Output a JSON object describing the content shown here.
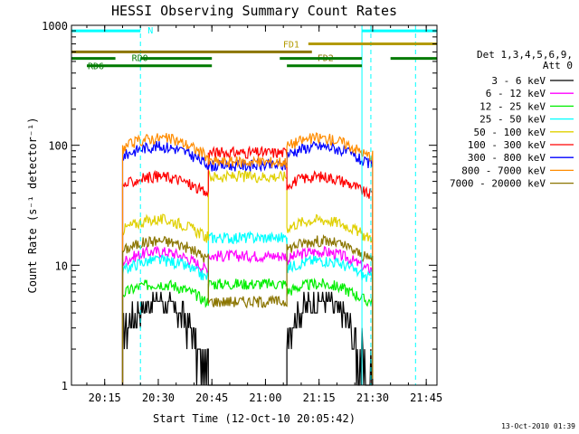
{
  "chart_data": {
    "type": "line",
    "title": "HESSI Observing Summary Count Rates",
    "xlabel": "Start Time (12-Oct-10 20:05:42)",
    "ylabel": "Count Rate (s⁻¹ detector⁻¹)",
    "y_scale": "log",
    "ylim": [
      1,
      1000
    ],
    "xlim": [
      "20:05:42",
      "21:48:00"
    ],
    "x_tick_labels": [
      "20:15",
      "20:30",
      "20:45",
      "21:00",
      "21:15",
      "21:30",
      "21:45"
    ],
    "y_tick_labels": [
      "1",
      "10",
      "100",
      "1000"
    ],
    "legend_header": [
      "Det 1,3,4,5,6,9,",
      "Att 0"
    ],
    "legend_position": "right",
    "series": [
      {
        "name": "3 - 6 keV",
        "color": "#000000",
        "levels": {
          "day": 3,
          "night": 0
        }
      },
      {
        "name": "6 - 12 keV",
        "color": "#ff00ff",
        "levels": {
          "day": 13,
          "night": 12
        }
      },
      {
        "name": "12 - 25 keV",
        "color": "#00ee00",
        "levels": {
          "day": 7,
          "night": 7
        }
      },
      {
        "name": "25 - 50 keV",
        "color": "#00ffff",
        "levels": {
          "day": 11,
          "night": 17
        }
      },
      {
        "name": "50 - 100 keV",
        "color": "#e0d000",
        "levels": {
          "day": 24,
          "night": 55
        }
      },
      {
        "name": "100 - 300 keV",
        "color": "#ff0000",
        "levels": {
          "day": 55,
          "night": 87
        }
      },
      {
        "name": "300 - 800 keV",
        "color": "#0000ff",
        "levels": {
          "day": 98,
          "night": 68
        }
      },
      {
        "name": "800 - 7000 keV",
        "color": "#ff8c00",
        "levels": {
          "day": 115,
          "night": 73
        }
      },
      {
        "name": "7000 - 20000 keV",
        "color": "#8b7500",
        "levels": {
          "day": 16,
          "night": 5
        }
      }
    ],
    "data_segments": [
      {
        "start": "20:20",
        "end": "20:44",
        "type": "day",
        "peak": "20:30"
      },
      {
        "start": "20:44",
        "end": "21:06",
        "type": "night"
      },
      {
        "start": "21:06",
        "end": "21:30",
        "type": "day",
        "peak": "21:15"
      }
    ],
    "annotation_bars": [
      {
        "label": "N",
        "color": "#00ffff",
        "y": 900,
        "segments": [
          [
            "20:05:42",
            "20:25"
          ],
          [
            "21:27",
            "21:48"
          ]
        ]
      },
      {
        "label": "FD1",
        "color": "#b39a00",
        "y": 700,
        "segments": [
          [
            "21:12",
            "21:48"
          ]
        ]
      },
      {
        "label": "FD2",
        "color": "#8b7500",
        "y": 600,
        "segments": [
          [
            "20:05:42",
            "21:13"
          ]
        ]
      },
      {
        "label": "RD0",
        "color": "#007a00",
        "y": 530,
        "segments": [
          [
            "20:05:42",
            "20:18"
          ],
          [
            "20:25",
            "20:45"
          ],
          [
            "21:04",
            "21:27"
          ],
          [
            "21:35",
            "21:48"
          ]
        ]
      },
      {
        "label": "RD6",
        "color": "#007a00",
        "y": 460,
        "segments": [
          [
            "20:10",
            "20:45"
          ],
          [
            "21:06",
            "21:27"
          ]
        ]
      }
    ],
    "vertical_lines": [
      {
        "x": "20:05:42",
        "style": "solid",
        "color": "#00ffff"
      },
      {
        "x": "20:25",
        "style": "dashed",
        "color": "#00ffff"
      },
      {
        "x": "21:27",
        "style": "solid",
        "color": "#00ffff"
      },
      {
        "x": "21:29:30",
        "style": "dashed",
        "color": "#00ffff"
      },
      {
        "x": "21:42",
        "style": "dashed",
        "color": "#00ffff"
      }
    ],
    "timestamp": "13-Oct-2010 01:39"
  }
}
